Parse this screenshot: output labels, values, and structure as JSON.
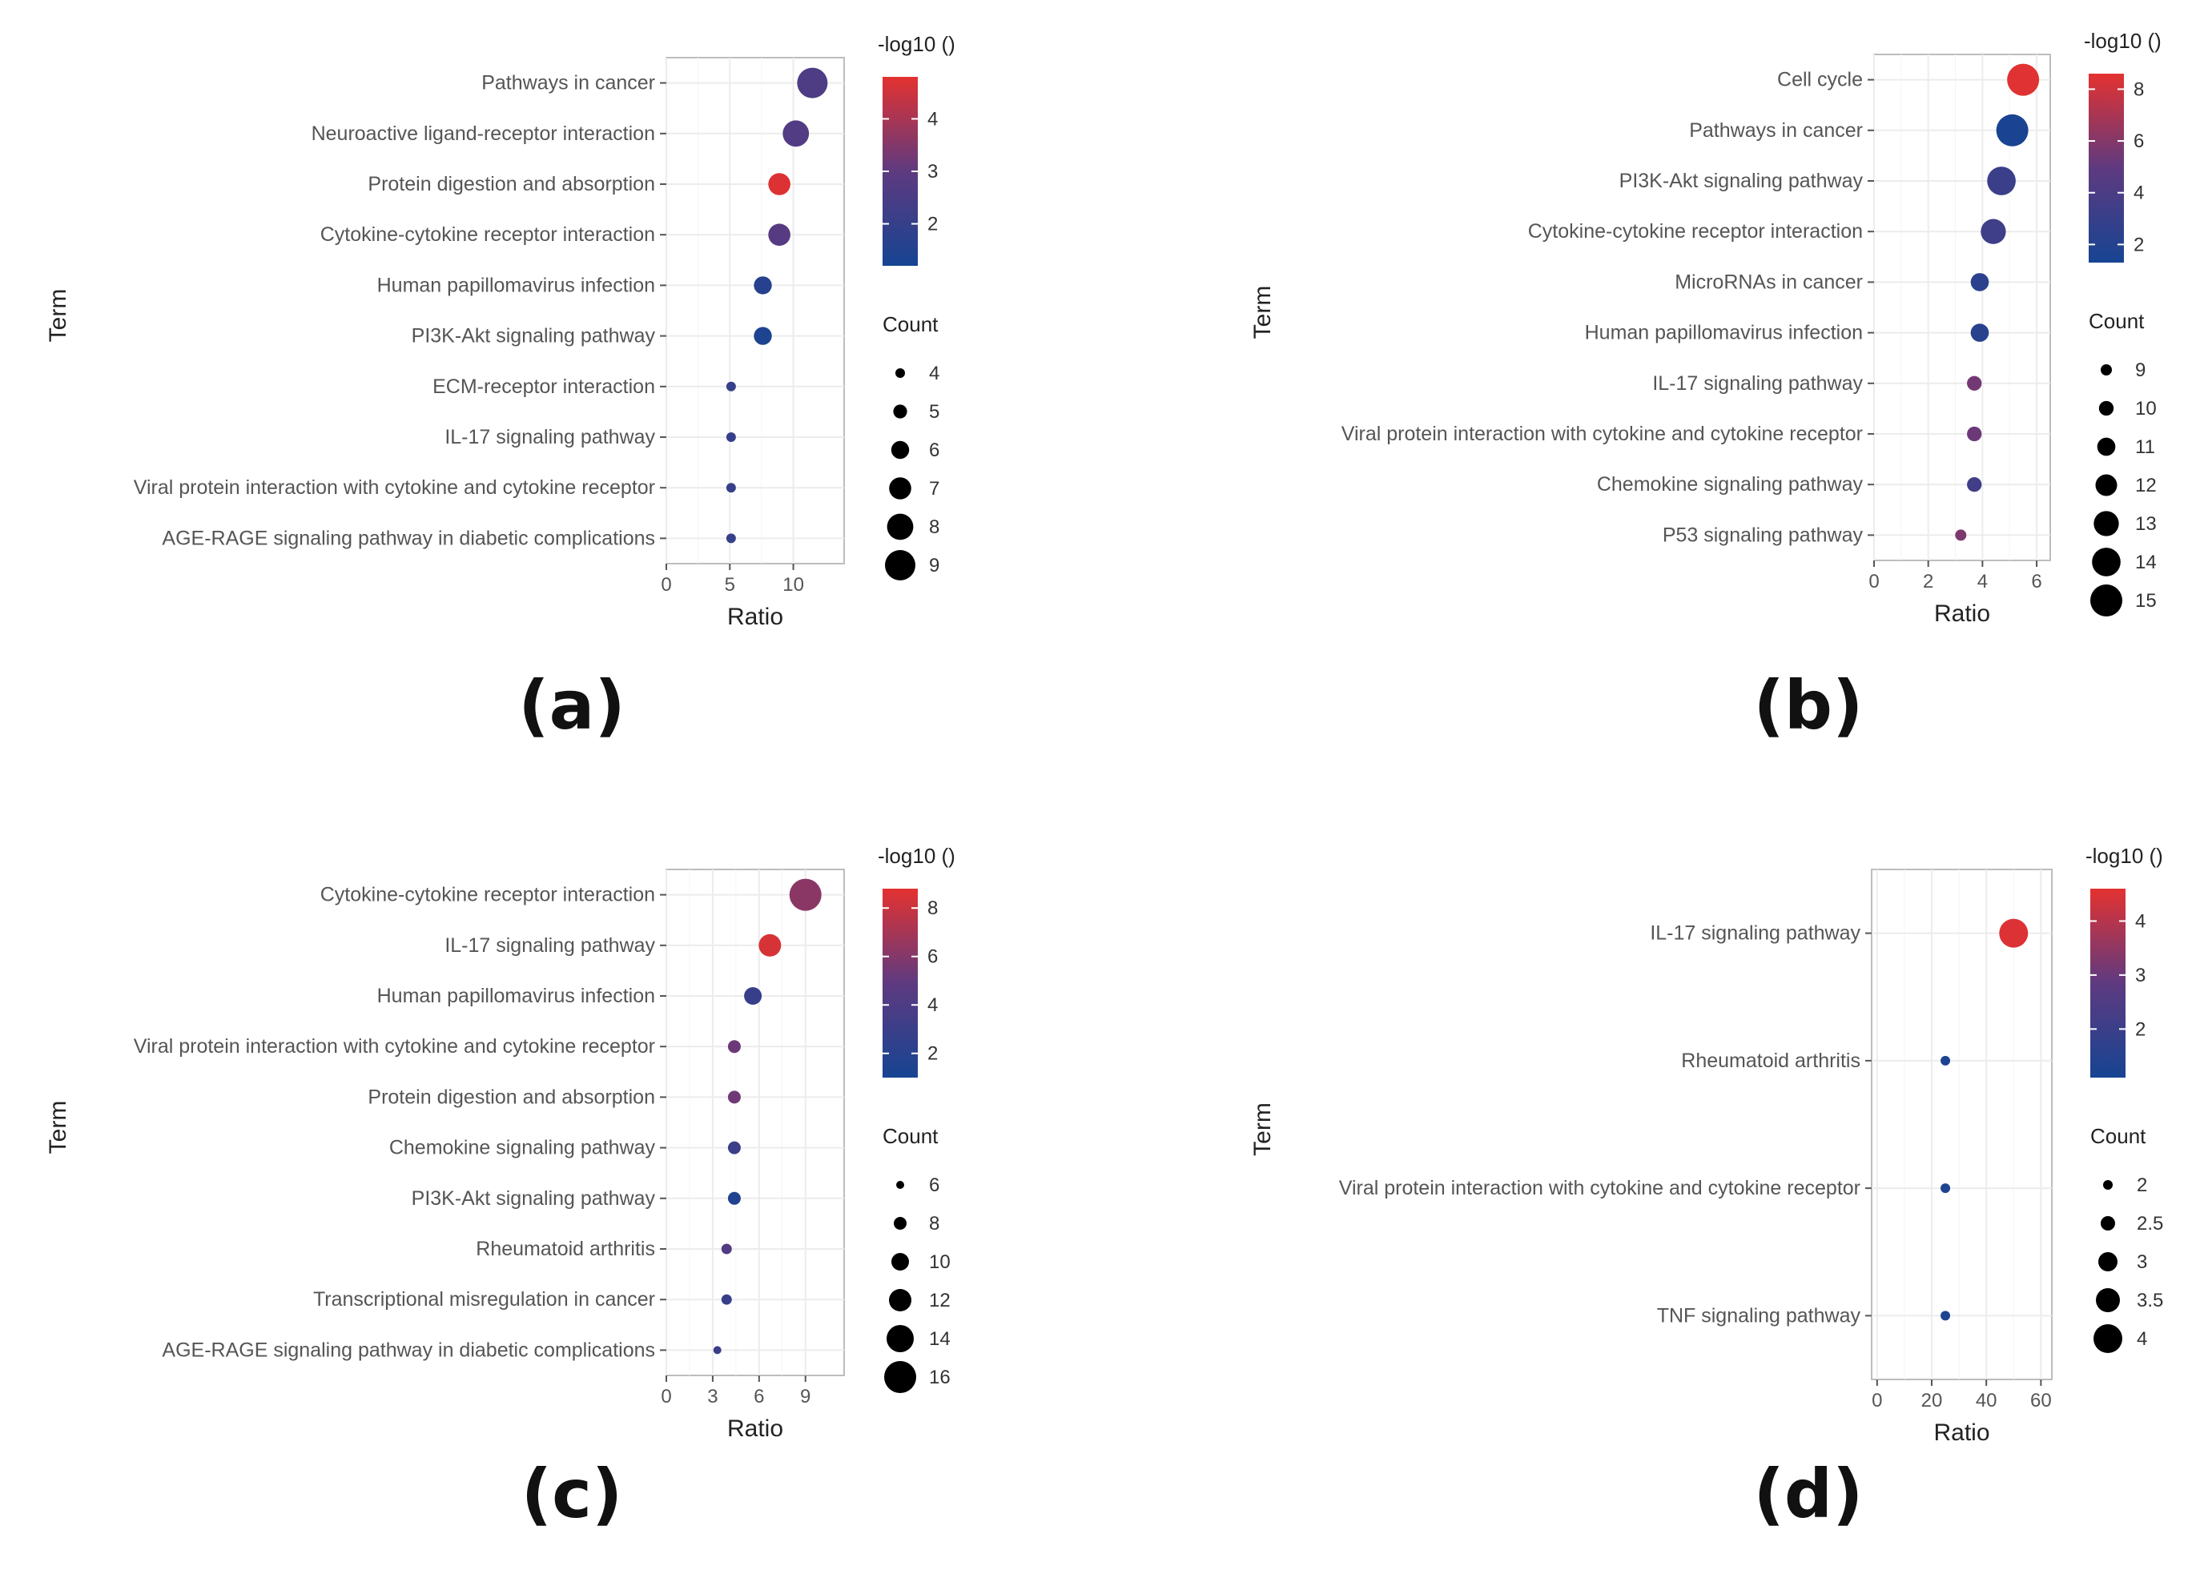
{
  "chart_data": [
    {
      "type": "scatter",
      "panel": "(a)",
      "xlabel": "Ratio",
      "ylabel": "Term",
      "xlim": [
        0,
        14
      ],
      "xticks": [
        0,
        5,
        10
      ],
      "color_title": "-log10 ()",
      "color_range": [
        1.2,
        4.8
      ],
      "color_ticks": [
        2,
        3,
        4
      ],
      "size_title": "Count",
      "size_range": [
        4,
        9
      ],
      "size_ticks": [
        4,
        5,
        6,
        7,
        8,
        9
      ],
      "terms": [
        "Pathways in cancer",
        "Neuroactive ligand-receptor interaction",
        "Protein digestion and absorption",
        "Cytokine-cytokine receptor interaction",
        "Human papillomavirus infection",
        "PI3K-Akt signaling pathway",
        "ECM-receptor interaction",
        "IL-17 signaling pathway",
        "Viral protein interaction with cytokine and cytokine receptor",
        "AGE-RAGE signaling pathway in diabetic complications"
      ],
      "ratio": [
        11.5,
        10.2,
        8.9,
        8.9,
        7.6,
        7.6,
        5.1,
        5.1,
        5.1,
        5.1
      ],
      "count": [
        9,
        8,
        7,
        7,
        6,
        6,
        4,
        4,
        4,
        4
      ],
      "neglog10": [
        2.6,
        2.7,
        4.7,
        2.8,
        1.6,
        1.4,
        2.0,
        2.0,
        2.0,
        2.0
      ]
    },
    {
      "type": "scatter",
      "panel": "(b)",
      "xlabel": "Ratio",
      "ylabel": "Term",
      "xlim": [
        0,
        6.5
      ],
      "xticks": [
        0,
        2,
        4,
        6
      ],
      "color_title": "-log10 ()",
      "color_range": [
        1.3,
        8.6
      ],
      "color_ticks": [
        2,
        4,
        6,
        8
      ],
      "size_title": "Count",
      "size_range": [
        9,
        15
      ],
      "size_ticks": [
        9,
        10,
        11,
        12,
        13,
        14,
        15
      ],
      "terms": [
        "Cell cycle",
        "Pathways in cancer",
        "PI3K-Akt signaling pathway",
        "Cytokine-cytokine receptor interaction",
        "MicroRNAs in cancer",
        "Human papillomavirus infection",
        "IL-17 signaling pathway",
        "Viral protein interaction with cytokine and cytokine receptor",
        "Chemokine signaling pathway",
        "P53 signaling pathway"
      ],
      "ratio": [
        5.5,
        5.1,
        4.7,
        4.4,
        3.9,
        3.9,
        3.7,
        3.7,
        3.7,
        3.2
      ],
      "count": [
        15,
        15,
        14,
        13,
        11,
        11,
        10,
        10,
        10,
        9
      ],
      "neglog10": [
        8.5,
        1.5,
        3.2,
        3.4,
        2.4,
        2.2,
        5.5,
        5.3,
        3.5,
        5.8
      ]
    },
    {
      "type": "scatter",
      "panel": "(c)",
      "xlabel": "Ratio",
      "ylabel": "Term",
      "xlim": [
        0,
        11.5
      ],
      "xticks": [
        0,
        3,
        6,
        9
      ],
      "color_title": "-log10 ()",
      "color_range": [
        1.0,
        8.8
      ],
      "color_ticks": [
        2,
        4,
        6,
        8
      ],
      "size_title": "Count",
      "size_range": [
        6,
        16
      ],
      "size_ticks": [
        6,
        8,
        10,
        12,
        14,
        16
      ],
      "terms": [
        "Cytokine-cytokine receptor interaction",
        "IL-17 signaling pathway",
        "Human papillomavirus infection",
        "Viral protein interaction with cytokine and cytokine receptor",
        "Protein digestion and absorption",
        "Chemokine signaling pathway",
        "PI3K-Akt signaling pathway",
        "Rheumatoid arthritis",
        "Transcriptional misregulation in cancer",
        "AGE-RAGE signaling pathway in diabetic complications"
      ],
      "ratio": [
        9.0,
        6.7,
        5.6,
        4.4,
        4.4,
        4.4,
        4.4,
        3.9,
        3.9,
        3.3
      ],
      "count": [
        16,
        12,
        10,
        8,
        8,
        8,
        8,
        7,
        7,
        6
      ],
      "neglog10": [
        6.2,
        8.4,
        2.8,
        5.3,
        5.4,
        3.0,
        1.6,
        4.3,
        2.8,
        3.0
      ]
    },
    {
      "type": "scatter",
      "panel": "(d)",
      "xlabel": "Ratio",
      "ylabel": "Term",
      "xlim": [
        -2,
        64
      ],
      "xticks": [
        0,
        20,
        40,
        60
      ],
      "color_title": "-log10 ()",
      "color_range": [
        1.1,
        4.6
      ],
      "color_ticks": [
        2,
        3,
        4
      ],
      "size_title": "Count",
      "size_range": [
        2.0,
        4.0
      ],
      "size_ticks": [
        2.0,
        2.5,
        3.0,
        3.5,
        4.0
      ],
      "terms": [
        "IL-17 signaling pathway",
        "Rheumatoid arthritis",
        "Viral protein interaction with cytokine and cytokine receptor",
        "TNF signaling pathway"
      ],
      "ratio": [
        50,
        25,
        25,
        25
      ],
      "count": [
        4,
        2,
        2,
        2
      ],
      "neglog10": [
        4.5,
        1.3,
        1.3,
        1.3
      ]
    }
  ]
}
